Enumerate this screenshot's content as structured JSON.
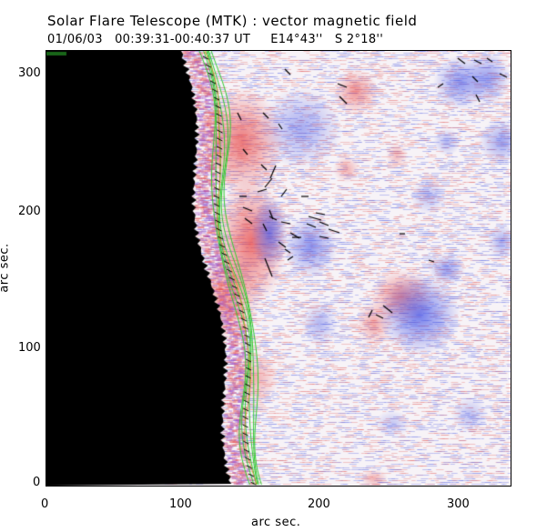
{
  "figure": {
    "title": "Solar Flare Telescope (MTK) : vector magnetic field",
    "subtitle": "01/06/03   00:39:31-00:40:37 UT     E14°43''   S 2°18''",
    "xlabel": "arc sec.",
    "ylabel": "arc sec.",
    "x_ticks": [
      "0",
      "100",
      "200",
      "300"
    ],
    "y_ticks": [
      "0",
      "100",
      "200",
      "300"
    ],
    "xlim": [
      0,
      335
    ],
    "ylim": [
      0,
      315
    ]
  },
  "colors": {
    "positive_polarity": "#e84a4a",
    "negative_polarity": "#4a5ae8",
    "off_disk": "#000000",
    "contour_lines": "#33cc33",
    "vectors": "#000000"
  }
}
